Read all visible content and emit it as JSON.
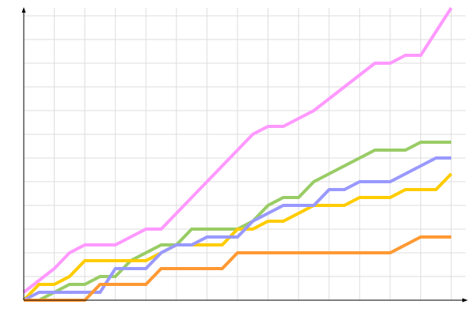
{
  "chart_data": {
    "type": "line",
    "title": "",
    "xlabel": "",
    "ylabel": "",
    "grid": true,
    "x": [
      0,
      1,
      2,
      3,
      4,
      5,
      6,
      7,
      8,
      9,
      10,
      11,
      12,
      13,
      14,
      15,
      16,
      17,
      18,
      19,
      20,
      21,
      22,
      23,
      24,
      25,
      26,
      27,
      28
    ],
    "xlim": [
      0,
      28
    ],
    "ylim": [
      0,
      37
    ],
    "series": [
      {
        "color": "#ff99ff",
        "values": [
          1,
          2.5,
          4,
          6,
          7,
          7,
          7,
          8,
          9,
          9,
          11,
          13,
          15,
          17,
          19,
          21,
          22,
          22,
          23,
          24,
          25.5,
          27,
          28.5,
          30,
          30,
          31,
          31,
          34,
          37
        ]
      },
      {
        "color": "#99cc66",
        "values": [
          0,
          0,
          1,
          2,
          2,
          3,
          3,
          5,
          6,
          7,
          7,
          9,
          9,
          9,
          9,
          10,
          12,
          13,
          13,
          15,
          16,
          17,
          18,
          19,
          19,
          19,
          20,
          20,
          20
        ]
      },
      {
        "color": "#ffcc00",
        "values": [
          0,
          2,
          2,
          3,
          5,
          5,
          5,
          5,
          5,
          6,
          7,
          7,
          7,
          7,
          9,
          9,
          10,
          10,
          11,
          12,
          12,
          12,
          13,
          13,
          13,
          14,
          14,
          14,
          16
        ]
      },
      {
        "color": "#9999ff",
        "values": [
          0,
          1,
          1,
          1,
          1,
          1,
          4,
          4,
          4,
          6,
          7,
          7,
          8,
          8,
          8,
          10,
          11,
          12,
          12,
          12,
          14,
          14,
          15,
          15,
          15,
          16,
          17,
          18,
          18
        ]
      },
      {
        "color": "#ff9933",
        "values": [
          0,
          0,
          0,
          0,
          0,
          2,
          2,
          2,
          2,
          4,
          4,
          4,
          4,
          4,
          6,
          6,
          6,
          6,
          6,
          6,
          6,
          6,
          6,
          6,
          6,
          7,
          8,
          8,
          8
        ]
      }
    ]
  }
}
